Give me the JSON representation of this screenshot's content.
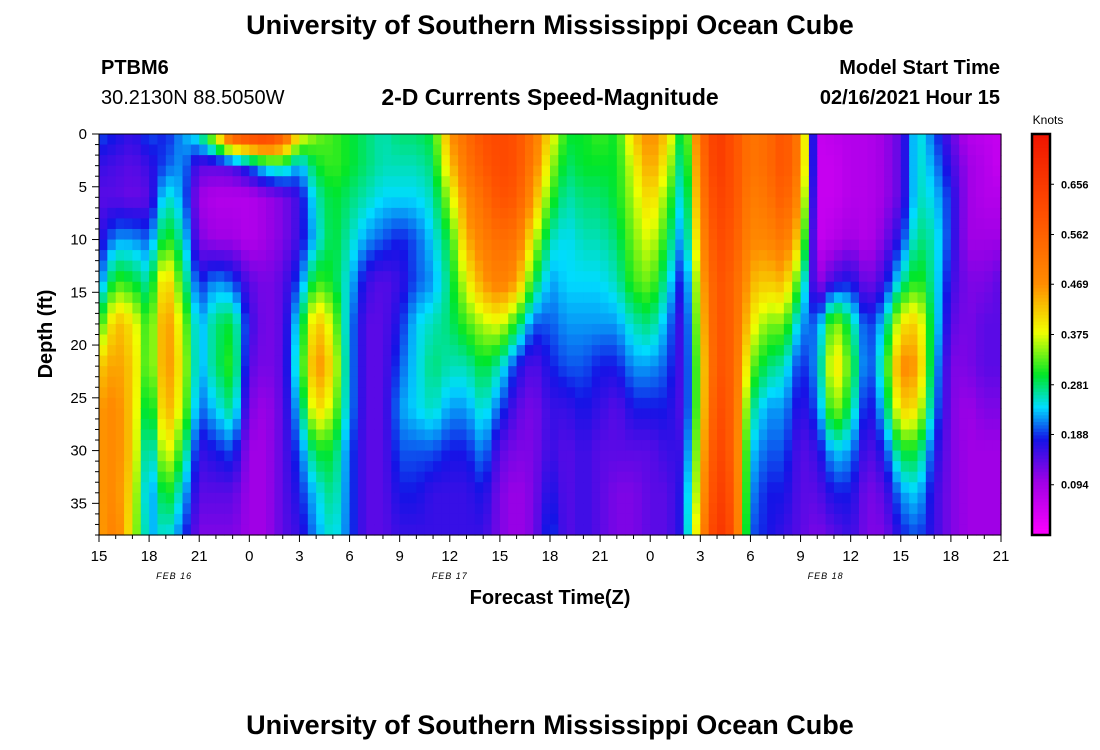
{
  "page": {
    "title_top": "University of Southern Mississippi Ocean Cube",
    "title_bottom": "University of Southern Mississippi Ocean Cube",
    "station_id": "PTBM6",
    "station_coords": "30.2130N 88.5050W",
    "model_start_label": "Model Start Time",
    "model_start_value": "02/16/2021 Hour 15"
  },
  "chart_data": {
    "type": "heatmap",
    "title": "2-D Currents Speed-Magnitude",
    "xlabel": "Forecast Time(Z)",
    "ylabel": "Depth (ft)",
    "x_tick_labels": [
      "15",
      "18",
      "21",
      "0",
      "3",
      "6",
      "9",
      "12",
      "15",
      "18",
      "21",
      "0",
      "3",
      "6",
      "9",
      "12",
      "15",
      "18",
      "21"
    ],
    "date_labels": [
      {
        "label": "FEB 16",
        "at_tick": 1.5
      },
      {
        "label": "FEB 17",
        "at_tick": 7
      },
      {
        "label": "FEB 18",
        "at_tick": 14.5
      }
    ],
    "x_range_hours": [
      0,
      54
    ],
    "y_tick_labels": [
      "0",
      "5",
      "10",
      "15",
      "20",
      "25",
      "30",
      "35"
    ],
    "ylim": [
      0,
      38
    ],
    "y_inverted": true,
    "colorbar": {
      "unit": "Knots",
      "tick_labels": [
        "0.656",
        "0.562",
        "0.469",
        "0.375",
        "0.281",
        "0.188",
        "0.094"
      ],
      "tick_values": [
        0.656,
        0.562,
        0.469,
        0.375,
        0.281,
        0.188,
        0.094
      ],
      "range": [
        0,
        0.75
      ]
    },
    "field_description": "current speed (knots) by forecast hour and depth",
    "time_nodes_hours": [
      0,
      1,
      2,
      3,
      4,
      5,
      6,
      7,
      8,
      9,
      10,
      11,
      12,
      13,
      14,
      15,
      16,
      17,
      18,
      19,
      20,
      21,
      22,
      23,
      24,
      25,
      26,
      27,
      28,
      29,
      30,
      31,
      32,
      33,
      34,
      35,
      36,
      37,
      38,
      39,
      40,
      41,
      42,
      43,
      44,
      45,
      46,
      47,
      48,
      49,
      50,
      51,
      52,
      53,
      54
    ],
    "depth_nodes_ft": [
      0,
      3,
      6,
      10,
      14,
      18,
      22,
      26,
      30,
      34,
      38
    ],
    "speed_knots": [
      [
        0.2,
        0.16,
        0.14,
        0.16,
        0.2,
        0.3,
        0.42,
        0.46,
        0.46,
        0.46,
        0.45
      ],
      [
        0.18,
        0.15,
        0.14,
        0.22,
        0.32,
        0.44,
        0.46,
        0.48,
        0.48,
        0.48,
        0.5
      ],
      [
        0.16,
        0.14,
        0.13,
        0.22,
        0.3,
        0.4,
        0.42,
        0.42,
        0.42,
        0.4,
        0.38
      ],
      [
        0.2,
        0.16,
        0.14,
        0.2,
        0.26,
        0.3,
        0.3,
        0.26,
        0.22,
        0.2,
        0.22
      ],
      [
        0.18,
        0.2,
        0.26,
        0.32,
        0.44,
        0.48,
        0.48,
        0.46,
        0.4,
        0.32,
        0.26
      ],
      [
        0.22,
        0.22,
        0.22,
        0.26,
        0.3,
        0.36,
        0.38,
        0.36,
        0.3,
        0.24,
        0.2
      ],
      [
        0.26,
        0.14,
        0.1,
        0.12,
        0.18,
        0.22,
        0.22,
        0.2,
        0.16,
        0.14,
        0.12
      ],
      [
        0.4,
        0.14,
        0.08,
        0.1,
        0.22,
        0.28,
        0.28,
        0.24,
        0.18,
        0.14,
        0.12
      ],
      [
        0.62,
        0.15,
        0.08,
        0.1,
        0.2,
        0.3,
        0.32,
        0.28,
        0.2,
        0.14,
        0.12
      ],
      [
        0.66,
        0.2,
        0.08,
        0.08,
        0.14,
        0.16,
        0.14,
        0.12,
        0.1,
        0.1,
        0.1
      ],
      [
        0.68,
        0.26,
        0.1,
        0.1,
        0.12,
        0.12,
        0.12,
        0.1,
        0.1,
        0.1,
        0.1
      ],
      [
        0.6,
        0.28,
        0.12,
        0.12,
        0.14,
        0.14,
        0.14,
        0.14,
        0.14,
        0.14,
        0.14
      ],
      [
        0.4,
        0.22,
        0.16,
        0.16,
        0.2,
        0.26,
        0.28,
        0.24,
        0.2,
        0.18,
        0.16
      ],
      [
        0.34,
        0.3,
        0.26,
        0.24,
        0.32,
        0.44,
        0.48,
        0.42,
        0.3,
        0.24,
        0.22
      ],
      [
        0.32,
        0.32,
        0.3,
        0.3,
        0.3,
        0.36,
        0.4,
        0.36,
        0.3,
        0.28,
        0.26
      ],
      [
        0.3,
        0.3,
        0.28,
        0.26,
        0.24,
        0.22,
        0.22,
        0.22,
        0.2,
        0.2,
        0.2
      ],
      [
        0.28,
        0.28,
        0.26,
        0.22,
        0.16,
        0.14,
        0.14,
        0.14,
        0.14,
        0.14,
        0.14
      ],
      [
        0.26,
        0.26,
        0.24,
        0.2,
        0.14,
        0.14,
        0.14,
        0.14,
        0.14,
        0.14,
        0.14
      ],
      [
        0.28,
        0.26,
        0.24,
        0.18,
        0.16,
        0.18,
        0.2,
        0.22,
        0.2,
        0.18,
        0.16
      ],
      [
        0.28,
        0.26,
        0.24,
        0.2,
        0.2,
        0.24,
        0.24,
        0.24,
        0.2,
        0.18,
        0.16
      ],
      [
        0.3,
        0.28,
        0.26,
        0.24,
        0.22,
        0.26,
        0.28,
        0.26,
        0.2,
        0.16,
        0.16
      ],
      [
        0.46,
        0.42,
        0.36,
        0.3,
        0.28,
        0.28,
        0.26,
        0.22,
        0.18,
        0.16,
        0.16
      ],
      [
        0.54,
        0.52,
        0.48,
        0.44,
        0.38,
        0.32,
        0.26,
        0.22,
        0.18,
        0.16,
        0.16
      ],
      [
        0.6,
        0.58,
        0.54,
        0.5,
        0.46,
        0.36,
        0.3,
        0.26,
        0.22,
        0.18,
        0.16
      ],
      [
        0.62,
        0.62,
        0.6,
        0.54,
        0.5,
        0.38,
        0.26,
        0.2,
        0.14,
        0.12,
        0.12
      ],
      [
        0.6,
        0.6,
        0.58,
        0.52,
        0.46,
        0.3,
        0.18,
        0.14,
        0.12,
        0.1,
        0.1
      ],
      [
        0.52,
        0.5,
        0.46,
        0.38,
        0.3,
        0.2,
        0.14,
        0.12,
        0.12,
        0.12,
        0.12
      ],
      [
        0.4,
        0.36,
        0.32,
        0.26,
        0.22,
        0.2,
        0.18,
        0.16,
        0.16,
        0.18,
        0.2
      ],
      [
        0.3,
        0.28,
        0.26,
        0.24,
        0.24,
        0.22,
        0.2,
        0.16,
        0.14,
        0.14,
        0.14
      ],
      [
        0.3,
        0.3,
        0.28,
        0.26,
        0.24,
        0.22,
        0.2,
        0.18,
        0.16,
        0.16,
        0.16
      ],
      [
        0.32,
        0.3,
        0.28,
        0.26,
        0.24,
        0.22,
        0.18,
        0.16,
        0.14,
        0.14,
        0.14
      ],
      [
        0.3,
        0.3,
        0.3,
        0.28,
        0.26,
        0.22,
        0.18,
        0.14,
        0.14,
        0.12,
        0.12
      ],
      [
        0.42,
        0.38,
        0.36,
        0.34,
        0.32,
        0.26,
        0.22,
        0.18,
        0.14,
        0.12,
        0.12
      ],
      [
        0.48,
        0.46,
        0.42,
        0.38,
        0.34,
        0.28,
        0.22,
        0.18,
        0.14,
        0.14,
        0.14
      ],
      [
        0.42,
        0.38,
        0.34,
        0.3,
        0.26,
        0.22,
        0.2,
        0.18,
        0.16,
        0.14,
        0.14
      ],
      [
        0.26,
        0.24,
        0.22,
        0.2,
        0.16,
        0.14,
        0.14,
        0.14,
        0.16,
        0.18,
        0.18
      ],
      [
        0.54,
        0.52,
        0.5,
        0.46,
        0.42,
        0.4,
        0.38,
        0.38,
        0.4,
        0.42,
        0.46
      ],
      [
        0.66,
        0.66,
        0.64,
        0.62,
        0.6,
        0.6,
        0.6,
        0.62,
        0.64,
        0.66,
        0.68
      ],
      [
        0.6,
        0.6,
        0.6,
        0.58,
        0.56,
        0.56,
        0.56,
        0.56,
        0.56,
        0.58,
        0.6
      ],
      [
        0.52,
        0.52,
        0.5,
        0.48,
        0.44,
        0.4,
        0.34,
        0.28,
        0.24,
        0.22,
        0.2
      ],
      [
        0.54,
        0.54,
        0.52,
        0.48,
        0.42,
        0.34,
        0.28,
        0.22,
        0.2,
        0.18,
        0.18
      ],
      [
        0.6,
        0.6,
        0.58,
        0.52,
        0.44,
        0.34,
        0.26,
        0.22,
        0.2,
        0.18,
        0.16
      ],
      [
        0.5,
        0.5,
        0.46,
        0.4,
        0.3,
        0.22,
        0.18,
        0.16,
        0.14,
        0.14,
        0.14
      ],
      [
        0.06,
        0.06,
        0.06,
        0.06,
        0.1,
        0.2,
        0.22,
        0.2,
        0.16,
        0.14,
        0.12
      ],
      [
        0.07,
        0.06,
        0.06,
        0.08,
        0.16,
        0.36,
        0.42,
        0.36,
        0.24,
        0.18,
        0.14
      ],
      [
        0.08,
        0.08,
        0.08,
        0.1,
        0.18,
        0.28,
        0.32,
        0.28,
        0.22,
        0.18,
        0.16
      ],
      [
        0.08,
        0.08,
        0.08,
        0.08,
        0.12,
        0.18,
        0.18,
        0.16,
        0.14,
        0.12,
        0.12
      ],
      [
        0.1,
        0.1,
        0.1,
        0.12,
        0.16,
        0.24,
        0.28,
        0.24,
        0.18,
        0.14,
        0.12
      ],
      [
        0.14,
        0.14,
        0.14,
        0.18,
        0.26,
        0.4,
        0.48,
        0.42,
        0.3,
        0.22,
        0.18
      ],
      [
        0.26,
        0.26,
        0.26,
        0.28,
        0.32,
        0.42,
        0.46,
        0.4,
        0.3,
        0.24,
        0.2
      ],
      [
        0.2,
        0.22,
        0.24,
        0.26,
        0.26,
        0.26,
        0.24,
        0.22,
        0.18,
        0.16,
        0.16
      ],
      [
        0.14,
        0.16,
        0.18,
        0.18,
        0.16,
        0.14,
        0.12,
        0.12,
        0.12,
        0.12,
        0.12
      ],
      [
        0.08,
        0.1,
        0.1,
        0.1,
        0.12,
        0.12,
        0.12,
        0.1,
        0.1,
        0.1,
        0.1
      ],
      [
        0.07,
        0.08,
        0.08,
        0.1,
        0.12,
        0.14,
        0.14,
        0.12,
        0.1,
        0.1,
        0.1
      ],
      [
        0.06,
        0.06,
        0.08,
        0.1,
        0.14,
        0.14,
        0.14,
        0.12,
        0.1,
        0.1,
        0.1
      ]
    ]
  }
}
